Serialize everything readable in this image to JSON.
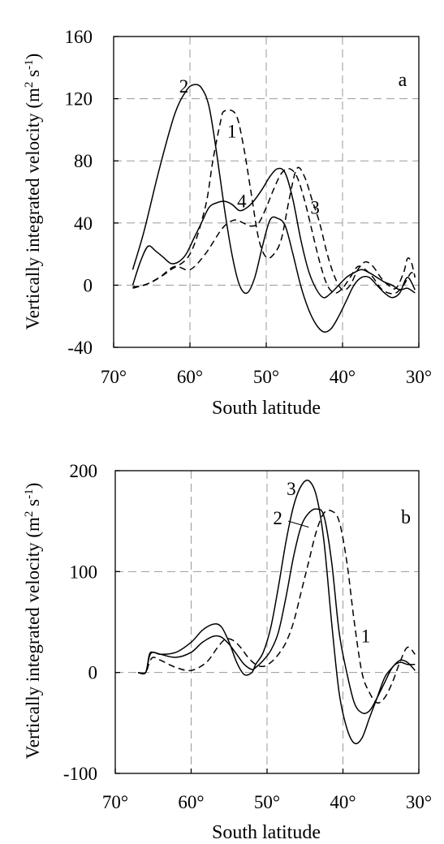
{
  "chart_data": [
    {
      "type": "line",
      "panel": "a",
      "xlabel": "South latitude",
      "ylabel": "Vertically integrated velocity (m",
      "ylabel_sup1": "2",
      "ylabel_mid": " s",
      "ylabel_sup2": "-1",
      "ylabel_end": ")",
      "xlim": [
        70,
        30
      ],
      "ylim": [
        -40,
        160
      ],
      "x_ticks": [
        70,
        60,
        50,
        40,
        30
      ],
      "x_tick_labels": [
        "70°",
        "60°",
        "50°",
        "40°",
        "30°"
      ],
      "y_ticks": [
        -40,
        0,
        40,
        80,
        120,
        160
      ],
      "y_tick_labels": [
        "-40",
        "0",
        "40",
        "80",
        "120",
        "160"
      ],
      "grid": true,
      "series": [
        {
          "name": "1",
          "style": "dashed",
          "x": [
            67.5,
            65,
            62.5,
            60,
            58,
            57,
            56,
            55.5,
            54,
            53,
            52,
            51,
            50,
            49,
            48,
            47,
            46,
            45,
            44,
            43,
            42,
            41,
            40,
            39,
            38,
            37,
            36,
            35,
            34,
            33,
            32,
            31.5,
            31,
            30.5
          ],
          "y": [
            -2,
            2,
            10,
            20,
            50,
            80,
            105,
            112,
            110,
            90,
            60,
            30,
            18,
            20,
            30,
            55,
            75,
            70,
            55,
            40,
            20,
            5,
            -3,
            0,
            10,
            15,
            12,
            5,
            0,
            -2,
            8,
            17,
            15,
            5
          ]
        },
        {
          "name": "2",
          "style": "solid",
          "x": [
            67.5,
            66,
            64,
            62,
            60.5,
            59.5,
            58.5,
            57.5,
            56.5,
            55.5,
            54.5,
            53.5,
            52.5,
            51.5,
            50.5,
            49.5,
            48.5,
            47.5,
            46.5,
            45.5,
            44.5,
            43.5,
            42.5,
            41.5,
            40.5,
            39.5,
            38.5,
            37.5,
            36.5,
            35.5,
            34.5,
            33.5,
            32.5,
            31.5,
            30.5
          ],
          "y": [
            10,
            35,
            75,
            110,
            125,
            129,
            127,
            115,
            85,
            50,
            20,
            0,
            -5,
            5,
            25,
            42,
            43,
            38,
            20,
            0,
            -15,
            -25,
            -30,
            -28,
            -20,
            -10,
            0,
            5,
            5,
            0,
            -5,
            -8,
            -5,
            5,
            -3
          ]
        },
        {
          "name": "3",
          "style": "dashed",
          "x": [
            67.5,
            66,
            64,
            62,
            60,
            58,
            56,
            55,
            54,
            53,
            52,
            51,
            50,
            49,
            48,
            47,
            46,
            45,
            44,
            43,
            42,
            41,
            40,
            39,
            38,
            37,
            36,
            35,
            34,
            33,
            32,
            31,
            30.5
          ],
          "y": [
            -1,
            0,
            5,
            12,
            10,
            20,
            35,
            40,
            42,
            40,
            38,
            40,
            50,
            62,
            72,
            75,
            70,
            55,
            35,
            15,
            0,
            -5,
            -2,
            5,
            12,
            10,
            5,
            -2,
            -5,
            -5,
            0,
            8,
            5
          ]
        },
        {
          "name": "4",
          "style": "solid",
          "x": [
            67.5,
            66.5,
            65.5,
            64.5,
            63.5,
            62.5,
            61.5,
            60.5,
            59.5,
            58.5,
            57.5,
            56.5,
            55.5,
            54.5,
            53.5,
            52.5,
            51.5,
            50.5,
            49.5,
            48.5,
            47.5,
            46.5,
            45.5,
            44.5,
            43.5,
            42.5,
            41.5,
            40.5,
            39.5,
            38.5,
            37.5,
            36.5,
            35.5,
            34.5,
            33.5,
            32.5,
            31.5,
            30.5
          ],
          "y": [
            0,
            15,
            25,
            22,
            18,
            14,
            15,
            20,
            30,
            40,
            50,
            53,
            54,
            52,
            48,
            50,
            55,
            62,
            70,
            75,
            72,
            55,
            30,
            10,
            -2,
            -8,
            -5,
            0,
            5,
            8,
            10,
            8,
            5,
            2,
            0,
            -3,
            -2,
            -5
          ]
        }
      ],
      "curve_labels": [
        {
          "text": "1",
          "x": 54.5,
          "y": 95
        },
        {
          "text": "2",
          "x": 60.8,
          "y": 124
        },
        {
          "text": "3",
          "x": 43.6,
          "y": 46
        },
        {
          "text": "4",
          "x": 53.2,
          "y": 50
        }
      ]
    },
    {
      "type": "line",
      "panel": "b",
      "xlabel": "South latitude",
      "ylabel": "Vertically integrated velocity (m",
      "ylabel_sup1": "2",
      "ylabel_mid": " s",
      "ylabel_sup2": "-1",
      "ylabel_end": ")",
      "xlim": [
        70,
        30
      ],
      "ylim": [
        -100,
        200
      ],
      "x_ticks": [
        70,
        60,
        50,
        40,
        30
      ],
      "x_tick_labels": [
        "70°",
        "60°",
        "50°",
        "40°",
        "30°"
      ],
      "y_ticks": [
        -100,
        0,
        100,
        200
      ],
      "y_tick_labels": [
        "-100",
        "0",
        "100",
        "200"
      ],
      "grid": true,
      "series": [
        {
          "name": "1",
          "style": "dashed",
          "x": [
            67,
            66,
            65.5,
            65,
            64,
            62,
            60,
            58,
            56.5,
            55.5,
            54.5,
            53.5,
            52.5,
            51.5,
            50.5,
            49.5,
            48.5,
            47.5,
            46.5,
            45.5,
            44.5,
            43.5,
            42.5,
            41.5,
            40.5,
            39.5,
            38.5,
            37.5,
            36.5,
            35.5,
            34.5,
            33.5,
            32.5,
            31.5,
            30.5
          ],
          "y": [
            0,
            0,
            10,
            15,
            12,
            5,
            2,
            10,
            25,
            33,
            32,
            25,
            15,
            8,
            6,
            10,
            18,
            30,
            50,
            80,
            110,
            140,
            158,
            160,
            150,
            110,
            50,
            0,
            -20,
            -30,
            -25,
            -10,
            10,
            25,
            18
          ]
        },
        {
          "name": "2",
          "style": "solid",
          "x": [
            67,
            66,
            65.5,
            65,
            64,
            62,
            60,
            58.5,
            57,
            56,
            55,
            54,
            53,
            52,
            51.5,
            50.5,
            49.5,
            48.5,
            47.5,
            46.5,
            45.5,
            44.5,
            43.5,
            42.5,
            41.5,
            40.5,
            39.5,
            38.5,
            37.5,
            36.5,
            35.5,
            34.5,
            33.5,
            32.5,
            31.5,
            30.5
          ],
          "y": [
            0,
            0,
            18,
            20,
            18,
            15,
            20,
            30,
            36,
            35,
            28,
            18,
            8,
            3,
            5,
            12,
            22,
            40,
            75,
            115,
            145,
            158,
            162,
            155,
            110,
            40,
            0,
            -30,
            -40,
            -38,
            -25,
            -10,
            5,
            10,
            8,
            8
          ]
        },
        {
          "name": "3",
          "style": "solid",
          "x": [
            67,
            66,
            65.5,
            65,
            64,
            62,
            60,
            58.5,
            57,
            56,
            55,
            54,
            53,
            52,
            51.5,
            50.5,
            49.5,
            48.5,
            47.5,
            46.5,
            45.5,
            44.5,
            43.5,
            42.5,
            41.5,
            40.5,
            39.5,
            38.5,
            37.5,
            36.5,
            35.5,
            34.5,
            33.5,
            32.5,
            31.5,
            30.5
          ],
          "y": [
            0,
            0,
            16,
            20,
            18,
            20,
            30,
            42,
            48,
            45,
            30,
            10,
            -2,
            0,
            8,
            20,
            45,
            85,
            130,
            165,
            185,
            190,
            175,
            130,
            50,
            -20,
            -55,
            -70,
            -65,
            -45,
            -25,
            -5,
            5,
            12,
            10,
            2
          ]
        }
      ],
      "curve_labels": [
        {
          "text": "1",
          "x": 37,
          "y": 30
        },
        {
          "text": "2",
          "x": 48.6,
          "y": 147
        },
        {
          "text": "3",
          "x": 46.8,
          "y": 176
        }
      ],
      "leaders": [
        {
          "from": [
            47.2,
            150
          ],
          "to": [
            44.5,
            144
          ]
        }
      ]
    }
  ],
  "panel_letters": {
    "a": "a",
    "b": "b"
  }
}
